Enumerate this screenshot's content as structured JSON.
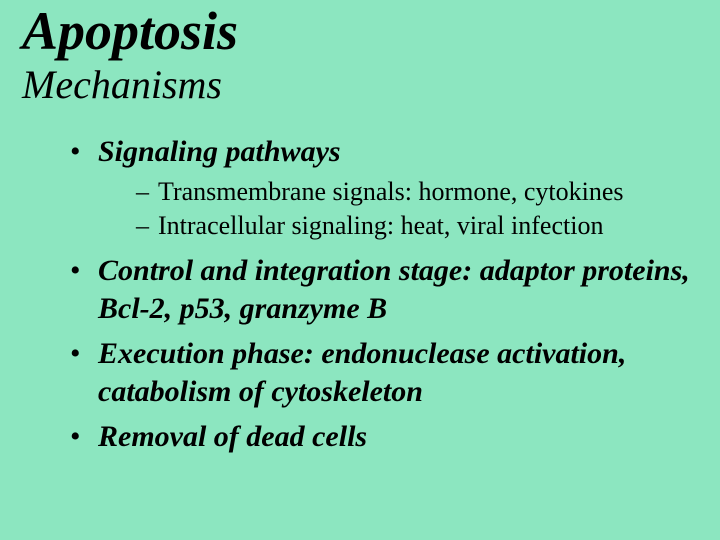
{
  "background_color": "#8ce6c0",
  "text_color": "#000000",
  "font_family": "Times New Roman, serif",
  "title": {
    "text": "Apoptosis",
    "font_size": 54,
    "font_style": "italic",
    "font_weight": "bold"
  },
  "subtitle": {
    "text": "Mechanisms",
    "font_size": 40,
    "font_style": "italic",
    "font_weight": "normal"
  },
  "bullets": [
    {
      "text": "Signaling pathways",
      "bold": true,
      "font_size": 30,
      "sub": [
        {
          "text": "Transmembrane signals: hormone, cytokines",
          "font_size": 26
        },
        {
          "text": "Intracellular signaling: heat, viral infection",
          "font_size": 26
        }
      ]
    },
    {
      "text": "Control and integration stage: adaptor proteins, Bcl-2, p53, granzyme B",
      "bold": true,
      "font_size": 30,
      "sub": []
    },
    {
      "text": "Execution phase: endonuclease activation, catabolism of cytoskeleton",
      "bold": true,
      "font_size": 30,
      "sub": []
    },
    {
      "text": "Removal of dead cells",
      "bold": true,
      "font_size": 30,
      "sub": []
    }
  ]
}
